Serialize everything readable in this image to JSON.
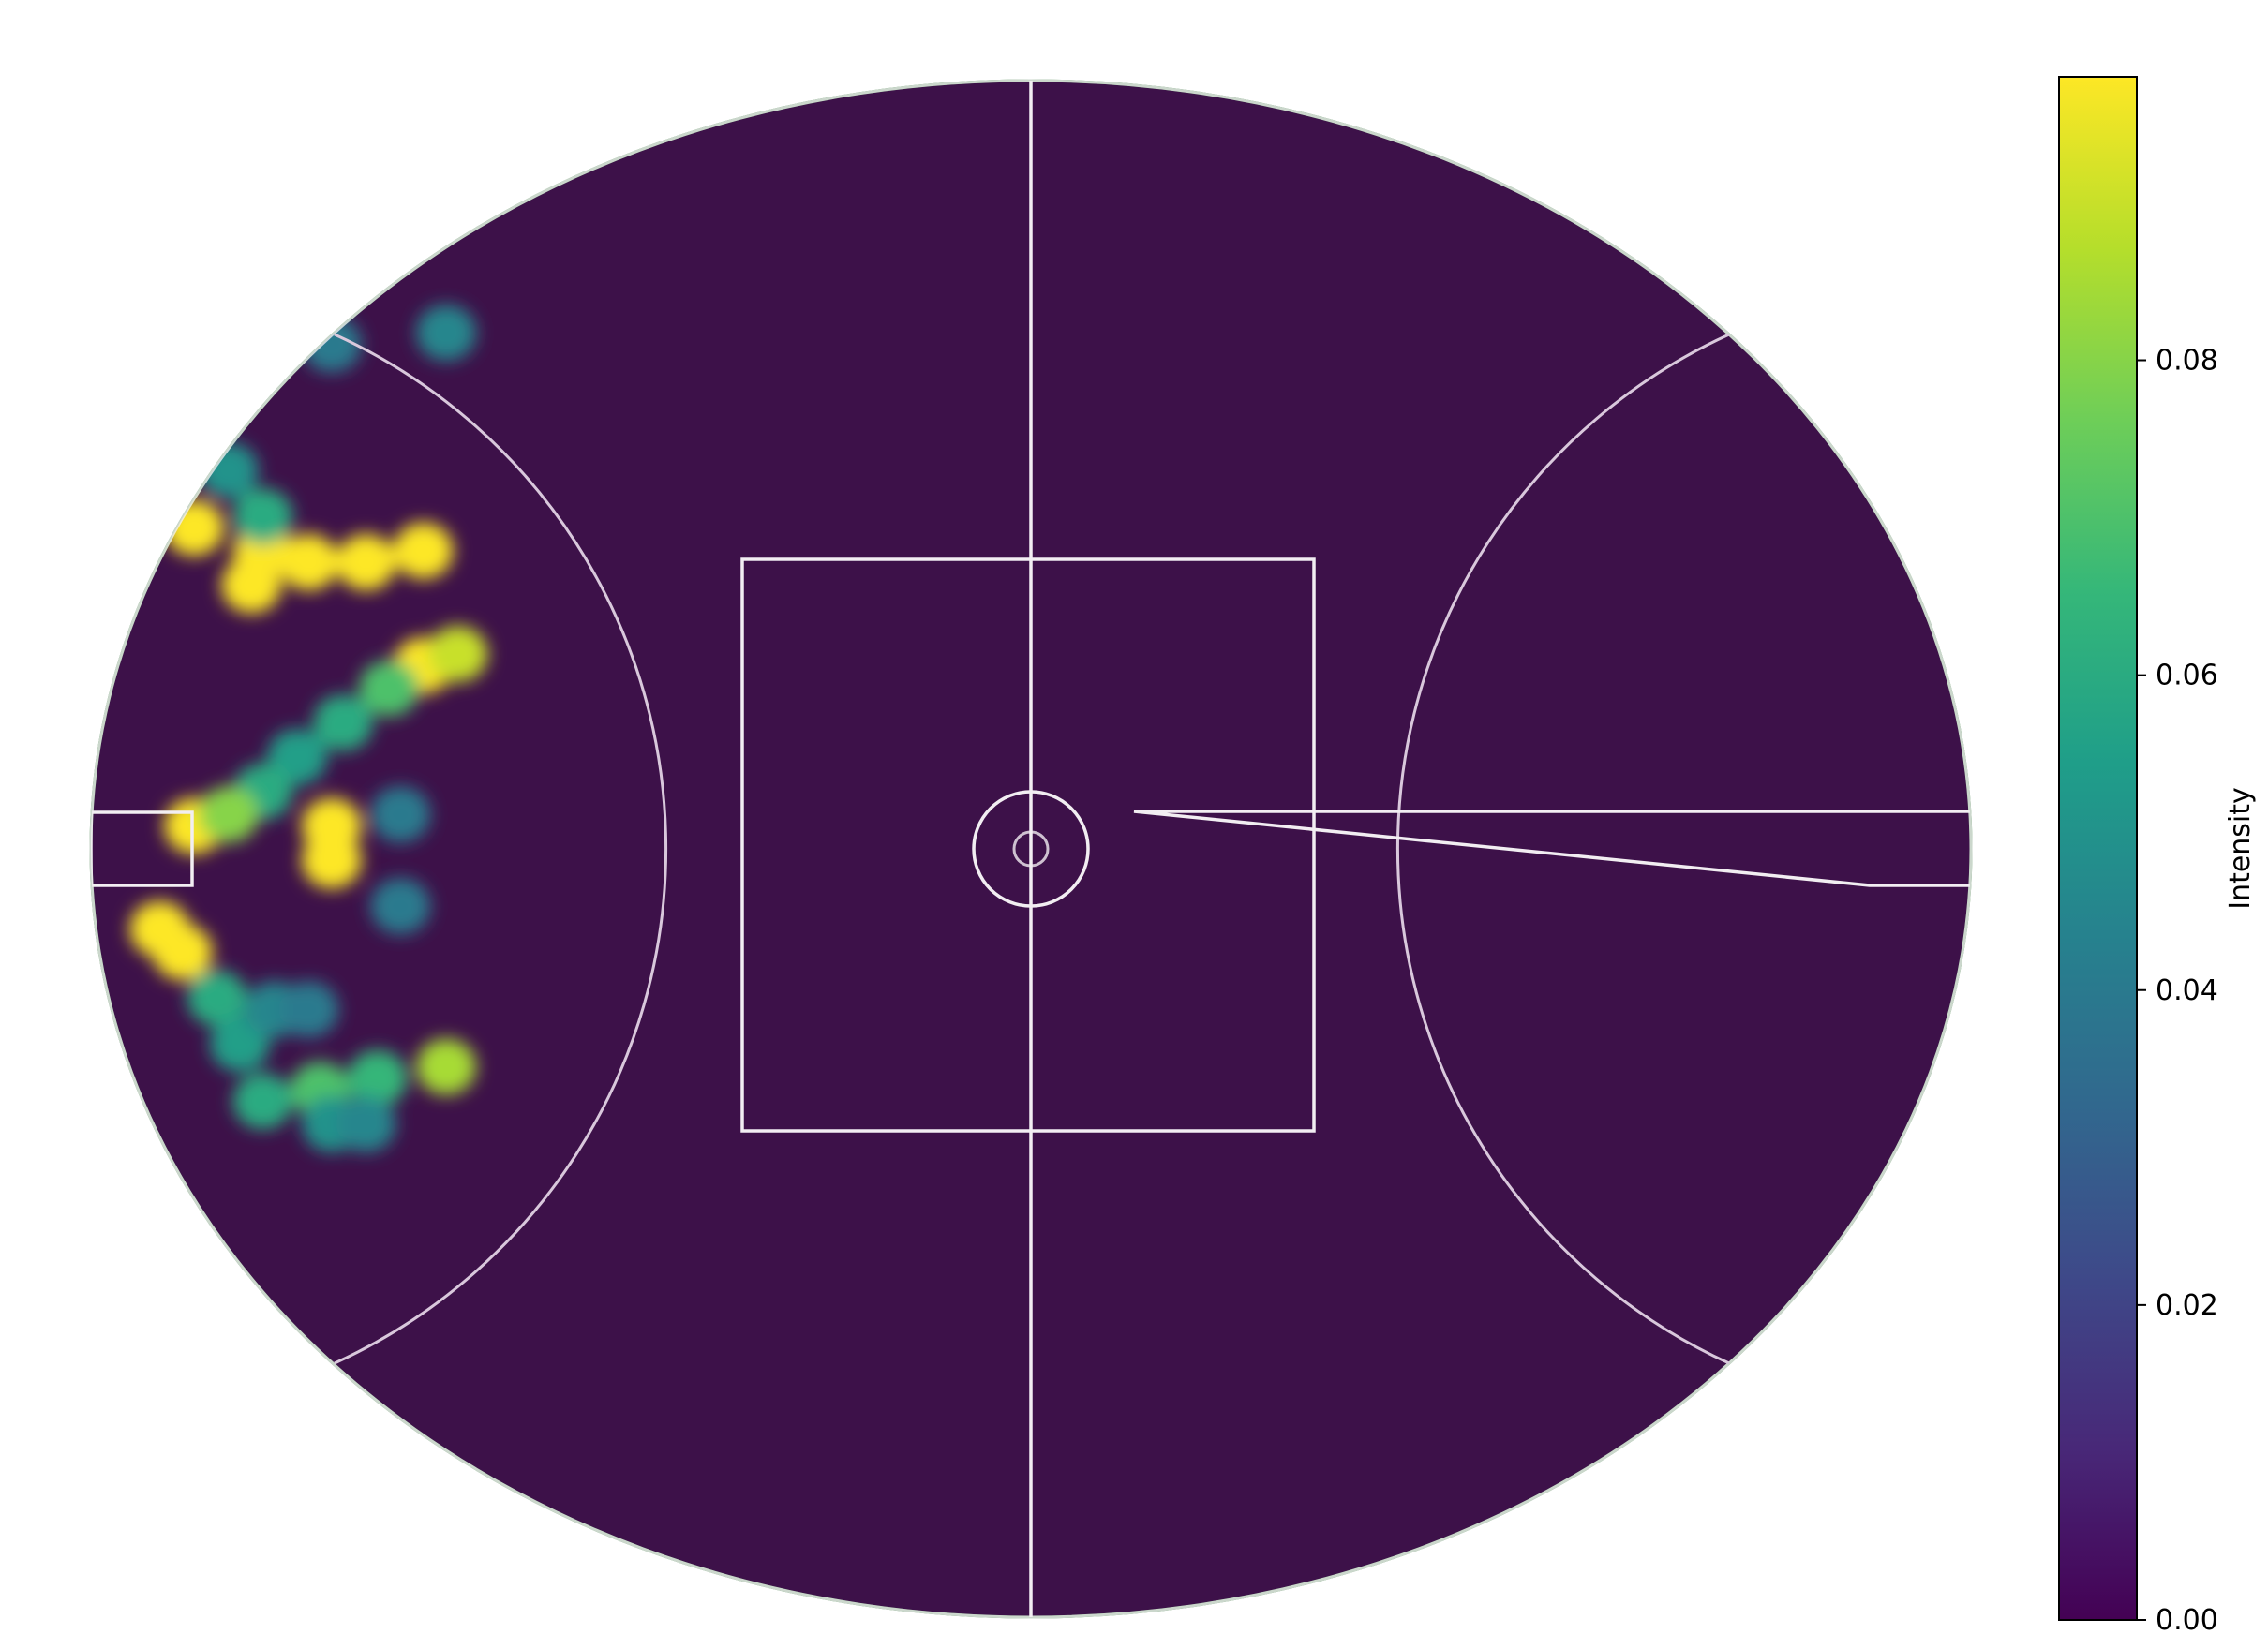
{
  "chart_data": {
    "type": "heatmap",
    "title": "",
    "xlabel": "",
    "ylabel": "",
    "colormap": "viridis",
    "background_value_color": "#3d1149",
    "line_color": "#f2eef2",
    "colorbar": {
      "label": "Intensity",
      "range": [
        0,
        0.098
      ],
      "ticks": [
        {
          "value": 0.0,
          "label": "0.00"
        },
        {
          "value": 0.02,
          "label": "0.02"
        },
        {
          "value": 0.04,
          "label": "0.04"
        },
        {
          "value": 0.06,
          "label": "0.06"
        },
        {
          "value": 0.08,
          "label": "0.08"
        }
      ]
    },
    "field": {
      "x_range": [
        -82,
        82
      ],
      "y_range": [
        -67,
        67
      ]
    },
    "hotspots": [
      {
        "x": -73,
        "y": 28,
        "value": 0.098
      },
      {
        "x": -67,
        "y": 26,
        "value": 0.098
      },
      {
        "x": -63,
        "y": 25,
        "value": 0.098
      },
      {
        "x": -58,
        "y": 25,
        "value": 0.098
      },
      {
        "x": -53,
        "y": 26,
        "value": 0.098
      },
      {
        "x": -68,
        "y": 23,
        "value": 0.098
      },
      {
        "x": -67,
        "y": 29,
        "value": 0.06
      },
      {
        "x": -70,
        "y": 33,
        "value": 0.05
      },
      {
        "x": -53,
        "y": 16,
        "value": 0.098
      },
      {
        "x": -50,
        "y": 17,
        "value": 0.09
      },
      {
        "x": -56,
        "y": 14,
        "value": 0.07
      },
      {
        "x": -60,
        "y": 11,
        "value": 0.06
      },
      {
        "x": -64,
        "y": 8,
        "value": 0.055
      },
      {
        "x": -67,
        "y": 5,
        "value": 0.06
      },
      {
        "x": -73,
        "y": 2,
        "value": 0.098
      },
      {
        "x": -70,
        "y": 3,
        "value": 0.08
      },
      {
        "x": -61,
        "y": 2,
        "value": 0.098
      },
      {
        "x": -61,
        "y": -1,
        "value": 0.098
      },
      {
        "x": -55,
        "y": 3,
        "value": 0.04
      },
      {
        "x": -55,
        "y": -5,
        "value": 0.04
      },
      {
        "x": -76,
        "y": -7,
        "value": 0.098
      },
      {
        "x": -74,
        "y": -9,
        "value": 0.098
      },
      {
        "x": -71,
        "y": -13,
        "value": 0.06
      },
      {
        "x": -69,
        "y": -17,
        "value": 0.055
      },
      {
        "x": -66,
        "y": -14,
        "value": 0.045
      },
      {
        "x": -63,
        "y": -14,
        "value": 0.04
      },
      {
        "x": -67,
        "y": -22,
        "value": 0.06
      },
      {
        "x": -62,
        "y": -21,
        "value": 0.07
      },
      {
        "x": -57,
        "y": -20,
        "value": 0.065
      },
      {
        "x": -51,
        "y": -19,
        "value": 0.085
      },
      {
        "x": -61,
        "y": -24,
        "value": 0.05
      },
      {
        "x": -58,
        "y": -24,
        "value": 0.045
      },
      {
        "x": -61,
        "y": 44,
        "value": 0.04
      },
      {
        "x": -51,
        "y": 45,
        "value": 0.045
      }
    ]
  }
}
